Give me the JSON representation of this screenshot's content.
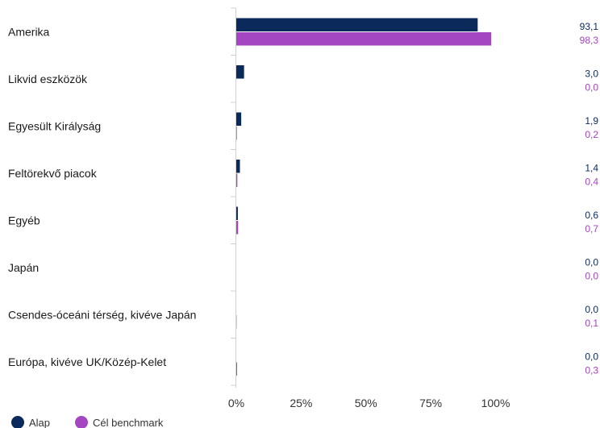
{
  "chart_data": {
    "type": "bar",
    "orientation": "horizontal",
    "categories": [
      "Amerika",
      "Likvid eszközök",
      "Egyesült Királyság",
      "Feltörekvő piacok",
      "Egyéb",
      "Japán",
      "Csendes-óceáni térség, kivéve Japán",
      "Európa, kivéve UK/Közép-Kelet"
    ],
    "series": [
      {
        "name": "Alap",
        "color": "#0b2a5b",
        "values": [
          93.1,
          3.0,
          1.9,
          1.4,
          0.6,
          0.0,
          0.0,
          0.0
        ],
        "labels": [
          "93,1",
          "3,0",
          "1,9",
          "1,4",
          "0,6",
          "0,0",
          "0,0",
          "0,0"
        ]
      },
      {
        "name": "Cél benchmark",
        "color": "#a445c2",
        "values": [
          98.3,
          0.0,
          0.2,
          0.4,
          0.7,
          0.0,
          0.1,
          0.3
        ],
        "labels": [
          "98,3",
          "0,0",
          "0,2",
          "0,4",
          "0,7",
          "0,0",
          "0,1",
          "0,3"
        ]
      }
    ],
    "xlim": [
      0,
      130
    ],
    "xticks": [
      0,
      25,
      50,
      75,
      100
    ],
    "xtick_labels": [
      "0%",
      "25%",
      "50%",
      "75%",
      "100%"
    ],
    "legend_position": "bottom-left",
    "grid": false
  }
}
